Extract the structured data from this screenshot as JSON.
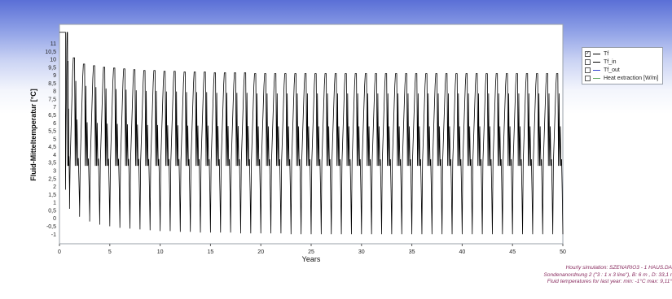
{
  "chart_data": {
    "type": "line",
    "ylabel": "Fluid-Mitteltemperatur [°C]",
    "xlabel": "Years",
    "xlim": [
      0,
      50
    ],
    "ylim": [
      -1.6,
      12.2
    ],
    "x_ticks": [
      0,
      5,
      10,
      15,
      20,
      25,
      30,
      35,
      40,
      45,
      50
    ],
    "y_ticks": [
      "-1",
      "-0,5",
      "0",
      "0,5",
      "1",
      "1,5",
      "2",
      "2,5",
      "3",
      "3,5",
      "4",
      "4,5",
      "5",
      "5,5",
      "6",
      "6,5",
      "7",
      "7,5",
      "8",
      "8,5",
      "9",
      "9,5",
      "10",
      "10,5",
      "11"
    ],
    "series": [
      {
        "name": "Tf",
        "color": "#000000",
        "description_values": {
          "initial_plateau": 11.7,
          "annual_max_by_year": [
            11.7,
            10.1,
            9.7,
            9.6,
            9.5,
            9.45,
            9.4,
            9.35,
            9.3,
            9.3,
            9.25,
            9.25,
            9.2,
            9.2,
            9.2,
            9.15,
            9.15,
            9.15,
            9.15,
            9.1,
            9.1,
            9.1,
            9.1,
            9.1,
            9.1,
            9.1,
            9.1,
            9.1,
            9.1,
            9.1,
            9.1,
            9.1,
            9.1,
            9.1,
            9.1,
            9.1,
            9.1,
            9.1,
            9.1,
            9.1,
            9.1,
            9.1,
            9.1,
            9.1,
            9.1,
            9.1,
            9.1,
            9.1,
            9.1,
            9.1
          ],
          "annual_min_by_year": [
            1.8,
            0.6,
            0.1,
            -0.2,
            -0.4,
            -0.5,
            -0.6,
            -0.65,
            -0.7,
            -0.75,
            -0.8,
            -0.8,
            -0.85,
            -0.85,
            -0.9,
            -0.9,
            -0.9,
            -0.9,
            -0.95,
            -0.95,
            -0.95,
            -0.95,
            -0.95,
            -1.0,
            -1.0,
            -1.0,
            -1.0,
            -1.0,
            -1.0,
            -1.0,
            -1.0,
            -1.0,
            -1.0,
            -1.0,
            -1.0,
            -1.0,
            -1.0,
            -1.0,
            -1.0,
            -1.0,
            -1.0,
            -1.0,
            -1.0,
            -1.0,
            -1.0,
            -1.0,
            -1.0,
            -1.0,
            -1.0,
            -1.0
          ],
          "annual_band_low": 3.3
        }
      }
    ],
    "legend": {
      "placement": "right",
      "items": [
        {
          "label": "Tf",
          "checked": true,
          "color": "#000000"
        },
        {
          "label": "Tf_in",
          "checked": false,
          "color": "#000000"
        },
        {
          "label": "Tf_out",
          "checked": false,
          "color": "#3344cc"
        },
        {
          "label": "Heat extraction [W/m]",
          "checked": false,
          "color": "#66aa66"
        }
      ]
    },
    "footer": [
      "Hourly simulation: SZENARIO3 - 1 HAUS.DA",
      "Sondenanordnung 2 (\"3 : 1 x 3 line\"), B: 6 m , D: 33,1 r",
      "Fluid temperatures for last year: min: -1°C max: 9,11°"
    ]
  }
}
